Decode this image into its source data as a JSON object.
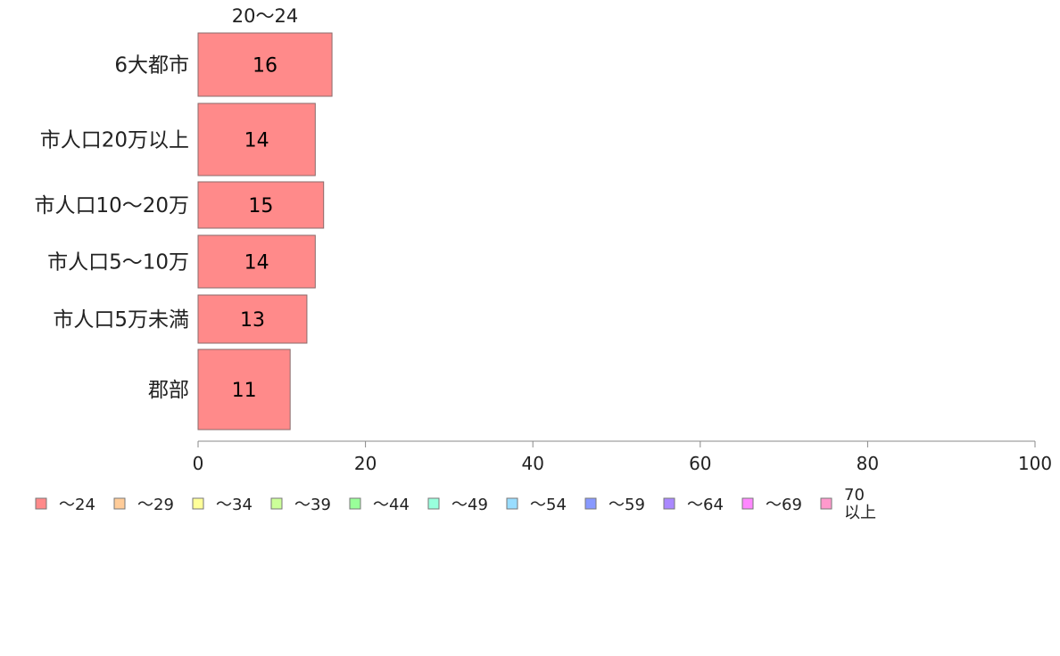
{
  "chart_data": {
    "type": "bar",
    "orientation": "horizontal",
    "column_title": "20〜24",
    "categories": [
      "6大都市",
      "市人口20万以上",
      "市人口10〜20万",
      "市人口5〜10万",
      "市人口5万未満",
      "郡部"
    ],
    "series": [
      {
        "name": "〜24",
        "values": [
          16,
          14,
          15,
          14,
          13,
          11
        ],
        "color": "#ff8a8a"
      }
    ],
    "xlim": [
      0,
      100
    ],
    "xticks": [
      0,
      20,
      40,
      60,
      80,
      100
    ],
    "grid": false,
    "legend_position": "bottom",
    "legend": [
      {
        "label": "〜24",
        "color": "#ff8a8a"
      },
      {
        "label": "〜29",
        "color": "#ffcc99"
      },
      {
        "label": "〜34",
        "color": "#ffff99"
      },
      {
        "label": "〜39",
        "color": "#ccff99"
      },
      {
        "label": "〜44",
        "color": "#99ff99"
      },
      {
        "label": "〜49",
        "color": "#99ffdd"
      },
      {
        "label": "〜54",
        "color": "#99ddff"
      },
      {
        "label": "〜59",
        "color": "#8899ff"
      },
      {
        "label": "〜64",
        "color": "#aa88ff"
      },
      {
        "label": "〜69",
        "color": "#ff88ff"
      },
      {
        "label": "70\n以上",
        "color": "#ff99cc"
      }
    ]
  }
}
